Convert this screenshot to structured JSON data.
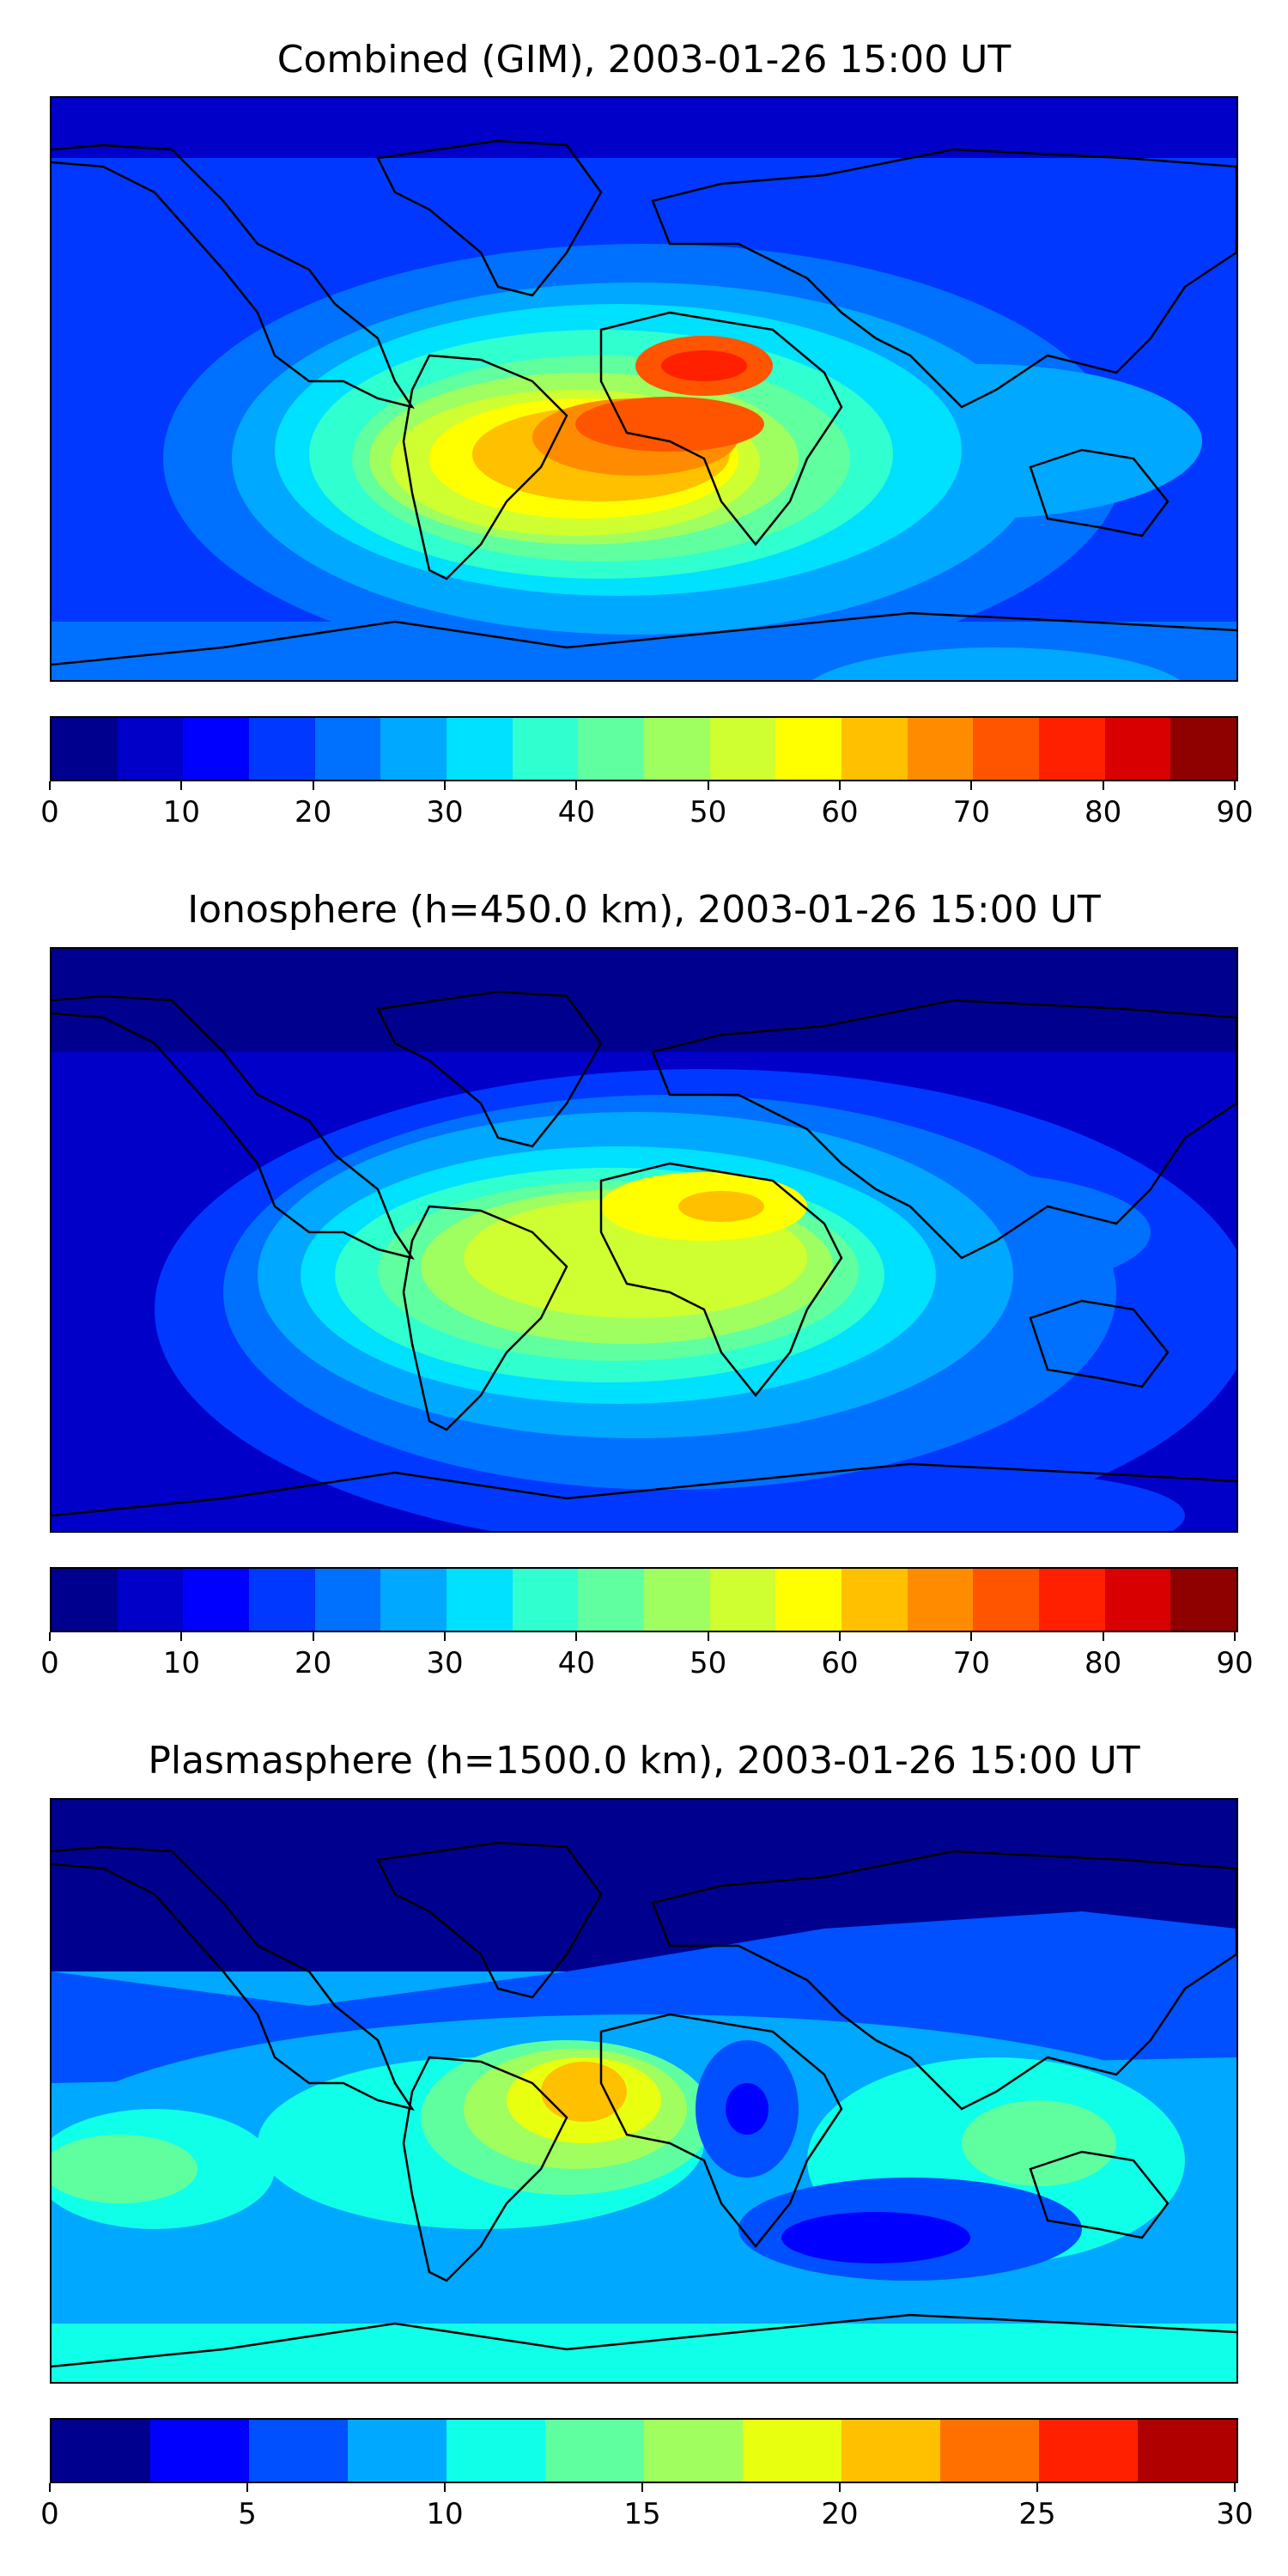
{
  "colors": {
    "scale18": [
      "#00008f",
      "#0000c8",
      "#0000ff",
      "#0038ff",
      "#0070ff",
      "#00a8ff",
      "#00e0ff",
      "#30ffcf",
      "#60ff9f",
      "#9fff60",
      "#cfff30",
      "#ffff00",
      "#ffc000",
      "#ff8c00",
      "#ff5500",
      "#ff2000",
      "#d80000",
      "#8f0000"
    ],
    "scale12": [
      "#00008f",
      "#0000ff",
      "#0050ff",
      "#00a8ff",
      "#10ffe8",
      "#5fffa0",
      "#a0ff5f",
      "#e8ff10",
      "#ffc000",
      "#ff7000",
      "#ff2000",
      "#b00000"
    ]
  },
  "panels": [
    {
      "title": "Combined (GIM), 2003-01-26 15:00 UT",
      "colorbar": {
        "min": 0,
        "max": 90,
        "levels": 18,
        "ticks": [
          "0",
          "10",
          "20",
          "30",
          "40",
          "50",
          "60",
          "70",
          "80",
          "90"
        ]
      }
    },
    {
      "title": "Ionosphere  (h=450.0 km), 2003-01-26 15:00 UT",
      "colorbar": {
        "min": 0,
        "max": 90,
        "levels": 18,
        "ticks": [
          "0",
          "10",
          "20",
          "30",
          "40",
          "50",
          "60",
          "70",
          "80",
          "90"
        ]
      }
    },
    {
      "title": "Plasmasphere (h=1500.0 km), 2003-01-26 15:00 UT",
      "colorbar": {
        "min": 0,
        "max": 30,
        "levels": 12,
        "ticks": [
          "0",
          "5",
          "10",
          "15",
          "20",
          "25",
          "30"
        ]
      }
    }
  ]
}
